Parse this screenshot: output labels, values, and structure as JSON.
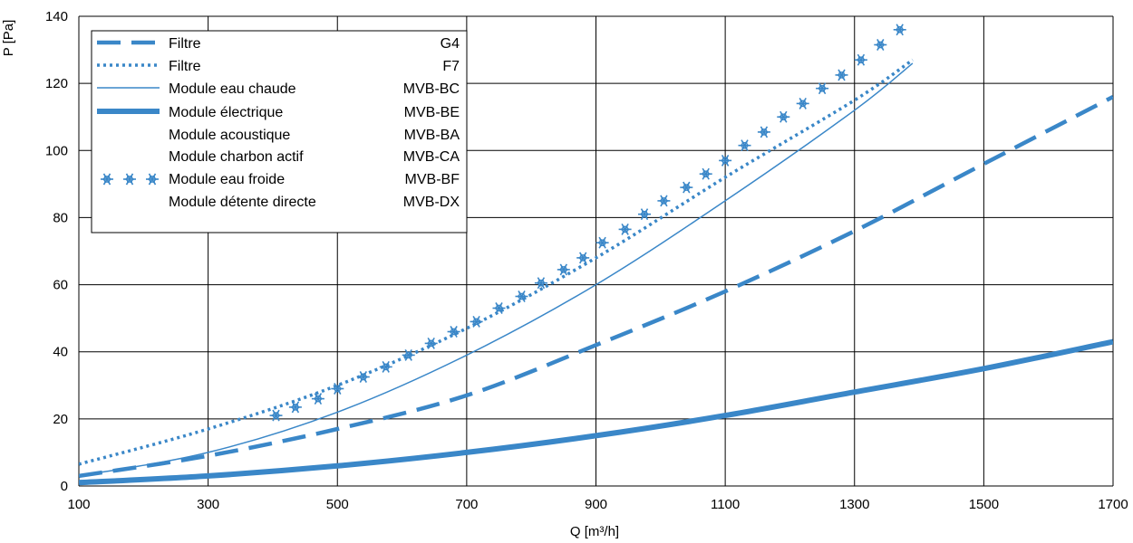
{
  "chart_data": {
    "type": "line",
    "xlabel": "Q [m³/h]",
    "ylabel": "P [Pa]",
    "xlim": [
      100,
      1700
    ],
    "ylim": [
      0,
      140
    ],
    "x_ticks": [
      "100",
      "300",
      "500",
      "700",
      "900",
      "1100",
      "1300",
      "1500",
      "1700"
    ],
    "y_ticks": [
      "0",
      "20",
      "40",
      "60",
      "80",
      "100",
      "120",
      "140"
    ],
    "grid": true,
    "legend_position": "top-left",
    "color": "#3a87c8",
    "legend": [
      {
        "label": "Filtre",
        "code": "G4",
        "style": "dashed"
      },
      {
        "label": "Filtre",
        "code": "F7",
        "style": "dotted"
      },
      {
        "label": "Module eau chaude",
        "code": "MVB-BC",
        "style": "thin"
      },
      {
        "label": "Module électrique",
        "code": "MVB-BE",
        "style": "thick"
      },
      {
        "label": "Module acoustique",
        "code": "MVB-BA",
        "style": "none"
      },
      {
        "label": "Module charbon actif",
        "code": "MVB-CA",
        "style": "none"
      },
      {
        "label": "Module eau froide",
        "code": "MVB-BF",
        "style": "snowflake"
      },
      {
        "label": "Module détente directe",
        "code": "MVB-DX",
        "style": "none"
      }
    ],
    "series": [
      {
        "style": "dashed",
        "points": [
          [
            100,
            3
          ],
          [
            300,
            9
          ],
          [
            500,
            17
          ],
          [
            700,
            27
          ],
          [
            900,
            42
          ],
          [
            1100,
            58
          ],
          [
            1300,
            76
          ],
          [
            1500,
            96
          ],
          [
            1700,
            116
          ]
        ]
      },
      {
        "style": "dotted",
        "points": [
          [
            100,
            6.5
          ],
          [
            300,
            17
          ],
          [
            500,
            30
          ],
          [
            700,
            47
          ],
          [
            900,
            68
          ],
          [
            1100,
            92
          ],
          [
            1300,
            115
          ],
          [
            1390,
            127
          ]
        ]
      },
      {
        "style": "thin",
        "points": [
          [
            100,
            3
          ],
          [
            300,
            10
          ],
          [
            500,
            22
          ],
          [
            700,
            39
          ],
          [
            900,
            60
          ],
          [
            1100,
            85
          ],
          [
            1300,
            112
          ],
          [
            1390,
            126
          ]
        ]
      },
      {
        "style": "thick",
        "points": [
          [
            100,
            1
          ],
          [
            300,
            3
          ],
          [
            500,
            6
          ],
          [
            700,
            10
          ],
          [
            900,
            15
          ],
          [
            1100,
            21
          ],
          [
            1300,
            28
          ],
          [
            1500,
            35
          ],
          [
            1700,
            43
          ]
        ]
      },
      {
        "style": "snowflake",
        "points": [
          [
            405,
            21
          ],
          [
            435,
            23.5
          ],
          [
            470,
            26
          ],
          [
            500,
            29
          ],
          [
            540,
            32.5
          ],
          [
            575,
            35.5
          ],
          [
            610,
            39
          ],
          [
            645,
            42.5
          ],
          [
            680,
            46
          ],
          [
            715,
            49
          ],
          [
            750,
            53
          ],
          [
            785,
            56.5
          ],
          [
            815,
            60.5
          ],
          [
            850,
            64.5
          ],
          [
            880,
            68
          ],
          [
            910,
            72.5
          ],
          [
            945,
            76.5
          ],
          [
            975,
            81
          ],
          [
            1005,
            85
          ],
          [
            1040,
            89
          ],
          [
            1070,
            93
          ],
          [
            1100,
            97
          ],
          [
            1130,
            101.5
          ],
          [
            1160,
            105.5
          ],
          [
            1190,
            110
          ],
          [
            1220,
            114
          ],
          [
            1250,
            118.5
          ],
          [
            1280,
            122.5
          ],
          [
            1310,
            127
          ],
          [
            1340,
            131.5
          ],
          [
            1370,
            136
          ]
        ]
      }
    ]
  }
}
